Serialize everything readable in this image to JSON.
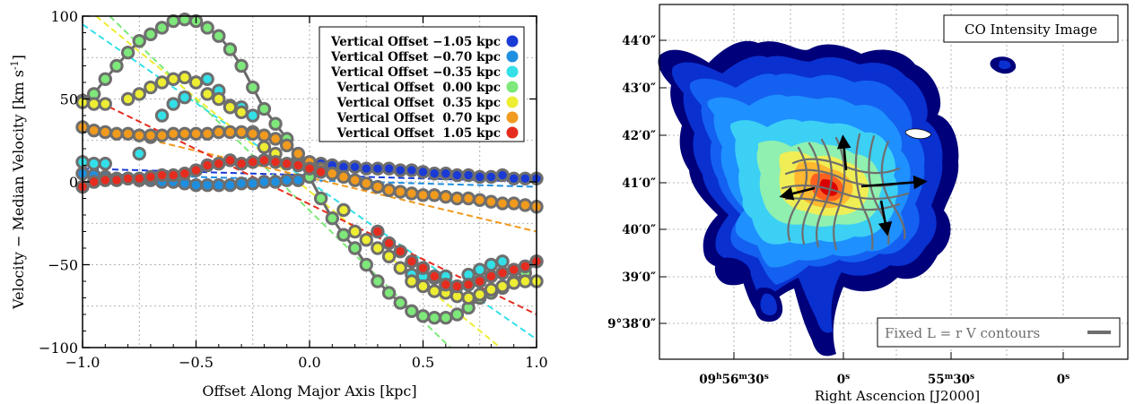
{
  "chart_data": [
    {
      "type": "scatter",
      "xlabel": "Offset Along Major Axis [kpc]",
      "ylabel": "Velocity − Median Velocity [km s",
      "ylabel_sup": "-1",
      "ylabel_end": "]",
      "xlim": [
        -1.0,
        1.0
      ],
      "ylim": [
        -100,
        100
      ],
      "grid": true,
      "legend_position": "top-right",
      "xticks": [
        -1.0,
        -0.5,
        0.0,
        0.5,
        1.0
      ],
      "xtick_labels": [
        "−1.0",
        "−0.5",
        "0.0",
        "0.5",
        "1.0"
      ],
      "yticks": [
        -100,
        -50,
        0,
        50,
        100
      ],
      "ytick_labels": [
        "−100",
        "−50",
        "0",
        "50",
        "100"
      ],
      "series": [
        {
          "name": "Vertical Offset −1.05 kpc",
          "color": "#1a3ad6",
          "x": [
            0.05,
            0.1,
            0.15,
            0.2,
            0.25,
            0.3,
            0.35,
            0.4,
            0.45,
            0.5,
            0.55,
            0.6,
            0.65,
            0.7,
            0.75,
            0.8,
            0.85,
            0.9,
            0.95,
            1.0
          ],
          "y": [
            11,
            10,
            9,
            9,
            8,
            8,
            8,
            7,
            7,
            6,
            5,
            5,
            4,
            4,
            3,
            3,
            4,
            2,
            2,
            2
          ],
          "fit": [
            [
              -1.0,
              8
            ],
            [
              1.0,
              0
            ]
          ]
        },
        {
          "name": "Vertical Offset −0.70 kpc",
          "color": "#1e8fe0",
          "x": [
            -1.0,
            -0.95,
            -0.9,
            -0.85,
            -0.8,
            -0.75,
            -0.7,
            -0.65,
            -0.6,
            -0.55,
            -0.5,
            -0.45,
            -0.4,
            -0.35,
            -0.3,
            -0.25,
            -0.2,
            -0.15,
            -0.1,
            -0.05
          ],
          "y": [
            5,
            4,
            3,
            2,
            2,
            1,
            1,
            0,
            0,
            -1,
            -2,
            -2,
            -2,
            -2,
            -1,
            -1,
            0,
            0,
            1,
            1
          ],
          "fit": [
            [
              -1.0,
              5
            ],
            [
              1.0,
              -3
            ]
          ]
        },
        {
          "name": "Vertical Offset −0.35 kpc",
          "color": "#33e0e8",
          "x": [
            -1.0,
            -0.95,
            -0.9,
            -0.75,
            -0.7,
            -0.65,
            -0.6,
            -0.55,
            -0.5,
            -0.45,
            -0.4,
            -0.35,
            -0.3,
            -0.25,
            0.45,
            0.5,
            0.55,
            0.6,
            0.7,
            0.75,
            0.8,
            0.85
          ],
          "y": [
            12,
            11,
            11,
            17,
            27,
            40,
            47,
            51,
            60,
            62,
            55,
            46,
            45,
            40,
            -56,
            -57,
            -58,
            -57,
            -56,
            -53,
            -50,
            -48
          ],
          "fit": [
            [
              -1.0,
              95
            ],
            [
              1.0,
              -95
            ]
          ]
        },
        {
          "name": "Vertical Offset  0.00 kpc",
          "color": "#7ee87a",
          "x": [
            -1.0,
            -0.95,
            -0.9,
            -0.85,
            -0.8,
            -0.75,
            -0.7,
            -0.65,
            -0.6,
            -0.55,
            -0.5,
            -0.45,
            -0.4,
            -0.35,
            -0.3,
            -0.25,
            -0.2,
            -0.15,
            -0.1,
            -0.05,
            0.0,
            0.05,
            0.1,
            0.15,
            0.2,
            0.25,
            0.3,
            0.35,
            0.4,
            0.45,
            0.5,
            0.55,
            0.6,
            0.65,
            0.7,
            0.75,
            0.8,
            0.85,
            0.9,
            0.95,
            1.0
          ],
          "y": [
            49,
            53,
            62,
            70,
            78,
            85,
            89,
            93,
            97,
            98,
            97,
            93,
            88,
            80,
            70,
            57,
            44,
            35,
            26,
            14,
            3,
            -10,
            -22,
            -32,
            -40,
            -50,
            -60,
            -67,
            -73,
            -78,
            -81,
            -82,
            -82,
            -80,
            -76,
            -70,
            -67,
            -64,
            -60,
            -55,
            -48
          ],
          "fit": [
            [
              -0.88,
              100
            ],
            [
              0.62,
              -100
            ]
          ]
        },
        {
          "name": "Vertical Offset  0.35 kpc",
          "color": "#eded33",
          "x": [
            -1.0,
            -0.95,
            -0.9,
            -0.8,
            -0.75,
            -0.7,
            -0.65,
            -0.6,
            -0.55,
            -0.5,
            -0.45,
            -0.4,
            -0.35,
            -0.3,
            -0.25,
            -0.2,
            -0.15,
            0.15,
            0.2,
            0.25,
            0.3,
            0.35,
            0.4,
            0.45,
            0.5,
            0.55,
            0.6,
            0.65,
            0.7,
            0.75,
            0.8,
            0.85,
            0.9,
            0.95,
            1.0
          ],
          "y": [
            48,
            47,
            47,
            50,
            53,
            57,
            60,
            62,
            63,
            60,
            53,
            50,
            45,
            42,
            30,
            21,
            17,
            -17,
            -30,
            -35,
            -40,
            -45,
            -52,
            -60,
            -63,
            -66,
            -67,
            -69,
            -70,
            -68,
            -65,
            -63,
            -61,
            -60,
            -60
          ],
          "fit": [
            [
              -0.94,
              100
            ],
            [
              0.84,
              -100
            ]
          ]
        },
        {
          "name": "Vertical Offset  0.70 kpc",
          "color": "#f09a1e",
          "x": [
            -1.0,
            -0.95,
            -0.9,
            -0.85,
            -0.8,
            -0.75,
            -0.7,
            -0.65,
            -0.6,
            -0.55,
            -0.5,
            -0.45,
            -0.4,
            -0.35,
            -0.3,
            -0.25,
            -0.2,
            -0.15,
            -0.1,
            -0.05,
            0.0,
            0.05,
            0.1,
            0.15,
            0.2,
            0.25,
            0.3,
            0.35,
            0.4,
            0.45,
            0.5,
            0.55,
            0.6,
            0.65,
            0.7,
            0.75,
            0.8,
            0.85,
            0.9,
            0.95,
            1.0
          ],
          "y": [
            33,
            31,
            30,
            29,
            29,
            28,
            28,
            28,
            29,
            29,
            29,
            29,
            30,
            30,
            30,
            29,
            28,
            26,
            22,
            17,
            12,
            8,
            5,
            3,
            1,
            -1,
            -3,
            -5,
            -6,
            -7,
            -8,
            -8,
            -9,
            -10,
            -10,
            -11,
            -12,
            -13,
            -13,
            -14,
            -15
          ],
          "fit": [
            [
              -1.0,
              35
            ],
            [
              1.0,
              -30
            ]
          ]
        },
        {
          "name": "Vertical Offset  1.05 kpc",
          "color": "#e62c1e",
          "x": [
            -1.0,
            -0.95,
            -0.9,
            -0.85,
            -0.8,
            -0.75,
            -0.7,
            -0.65,
            -0.6,
            -0.55,
            -0.5,
            -0.45,
            -0.4,
            -0.35,
            -0.3,
            -0.25,
            -0.2,
            -0.15,
            -0.1,
            -0.05,
            0.0,
            0.05,
            0.3,
            0.35,
            0.4,
            0.45,
            0.5,
            0.55,
            0.6,
            0.65,
            0.7,
            0.75,
            0.8,
            0.85,
            0.9,
            0.95,
            1.0
          ],
          "y": [
            -3,
            0,
            1,
            1,
            2,
            2,
            3,
            4,
            4,
            5,
            7,
            10,
            11,
            13,
            11,
            12,
            13,
            12,
            11,
            10,
            8,
            6,
            -30,
            -37,
            -42,
            -48,
            -52,
            -57,
            -62,
            -63,
            -62,
            -60,
            -57,
            -55,
            -53,
            -51,
            -48
          ],
          "fit": [
            [
              -1.0,
              53
            ],
            [
              1.0,
              -80
            ]
          ]
        }
      ]
    },
    {
      "type": "heatmap",
      "title": "CO Intensity Image",
      "xlabel": "Right Ascencion [J2000]",
      "ylabel": "",
      "ytick_labels": [
        "44′0″",
        "43′0″",
        "42′0″",
        "41′0″",
        "40′0″",
        "39′0″",
        "9°38′0″"
      ],
      "xtick_labels": [
        "09h56m30s",
        "0s",
        "55m30s",
        "0s"
      ],
      "legend_label": "Fixed L = r V contours",
      "colormap": [
        "#00007a",
        "#0020c8",
        "#0050f0",
        "#0090ff",
        "#22c8ff",
        "#55e8e0",
        "#9ef0a0",
        "#e8f050",
        "#ffd030",
        "#ff9020",
        "#ff4010",
        "#d80000"
      ]
    }
  ]
}
